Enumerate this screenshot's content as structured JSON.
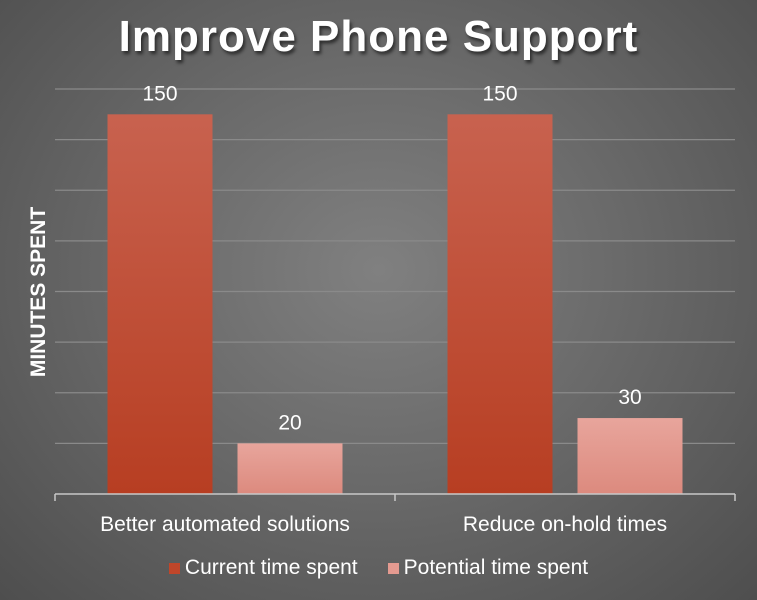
{
  "chart_data": {
    "type": "bar",
    "title": "Improve Phone Support",
    "xlabel": "",
    "ylabel": "MINUTES SPENT",
    "categories": [
      "Better automated solutions",
      "Reduce on-hold times"
    ],
    "series": [
      {
        "name": "Current time spent",
        "values": [
          150,
          150
        ],
        "color": "#c0462a"
      },
      {
        "name": "Potential time spent",
        "values": [
          20,
          30
        ],
        "color": "#e49a90"
      }
    ],
    "ylim": [
      0,
      160
    ],
    "grid": true,
    "legend": "bottom"
  }
}
